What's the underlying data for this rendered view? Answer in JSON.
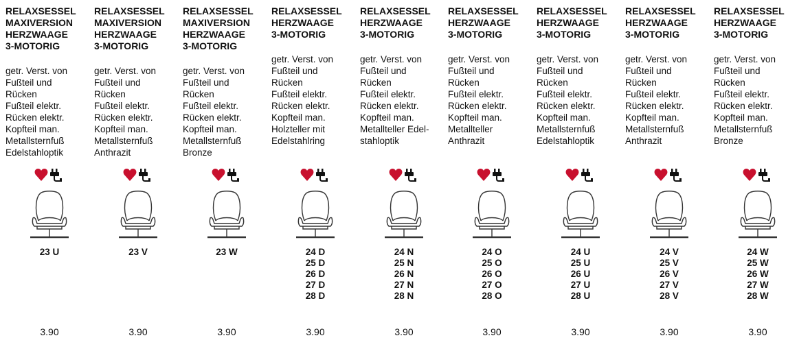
{
  "columns": [
    {
      "title": [
        "RELAXSESSEL",
        "MAXIVERSION",
        "HERZWAAGE",
        "3-MOTORIG"
      ],
      "description": [
        "getr. Verst. von",
        "Fußteil und",
        "Rücken",
        "Fußteil elektr.",
        "Rücken elektr.",
        "Kopfteil man.",
        "Metallsternfuß",
        "Edelstahloptik"
      ],
      "codes": [
        "23 U"
      ],
      "price": "3.90"
    },
    {
      "title": [
        "RELAXSESSEL",
        "MAXIVERSION",
        "HERZWAAGE",
        "3-MOTORIG"
      ],
      "description": [
        "getr. Verst. von",
        "Fußteil und",
        "Rücken",
        "Fußteil elektr.",
        "Rücken elektr.",
        "Kopfteil man.",
        "Metallsternfuß",
        "Anthrazit"
      ],
      "codes": [
        "23 V"
      ],
      "price": "3.90"
    },
    {
      "title": [
        "RELAXSESSEL",
        "MAXIVERSION",
        "HERZWAAGE",
        "3-MOTORIG"
      ],
      "description": [
        "getr. Verst. von",
        "Fußteil und",
        "Rücken",
        "Fußteil elektr.",
        "Rücken elektr.",
        "Kopfteil man.",
        "Metallsternfuß",
        "Bronze"
      ],
      "codes": [
        "23 W"
      ],
      "price": "3.90"
    },
    {
      "title": [
        "RELAXSESSEL",
        "HERZWAAGE",
        "3-MOTORIG"
      ],
      "description": [
        "getr. Verst. von",
        "Fußteil und",
        "Rücken",
        "Fußteil elektr.",
        "Rücken elektr.",
        "Kopfteil man.",
        "Holzteller mit",
        "Edelstahlring"
      ],
      "codes": [
        "24 D",
        "25 D",
        "26 D",
        "27 D",
        "28 D"
      ],
      "price": "3.90"
    },
    {
      "title": [
        "RELAXSESSEL",
        "HERZWAAGE",
        "3-MOTORIG"
      ],
      "description": [
        "getr. Verst. von",
        "Fußteil und",
        "Rücken",
        "Fußteil elektr.",
        "Rücken elektr.",
        "Kopfteil man.",
        "Metallteller Edel-",
        "stahloptik"
      ],
      "codes": [
        "24 N",
        "25 N",
        "26 N",
        "27 N",
        "28 N"
      ],
      "price": "3.90"
    },
    {
      "title": [
        "RELAXSESSEL",
        "HERZWAAGE",
        "3-MOTORIG"
      ],
      "description": [
        "getr. Verst. von",
        "Fußteil und",
        "Rücken",
        "Fußteil elektr.",
        "Rücken elektr.",
        "Kopfteil man.",
        "Metallteller",
        "Anthrazit"
      ],
      "codes": [
        "24 O",
        "25 O",
        "26 O",
        "27 O",
        "28 O"
      ],
      "price": "3.90"
    },
    {
      "title": [
        "RELAXSESSEL",
        "HERZWAAGE",
        "3-MOTORIG"
      ],
      "description": [
        "getr. Verst. von",
        "Fußteil und",
        "Rücken",
        "Fußteil elektr.",
        "Rücken elektr.",
        "Kopfteil man.",
        "Metallsternfuß",
        "Edelstahloptik"
      ],
      "codes": [
        "24 U",
        "25 U",
        "26 U",
        "27 U",
        "28 U"
      ],
      "price": "3.90"
    },
    {
      "title": [
        "RELAXSESSEL",
        "HERZWAAGE",
        "3-MOTORIG"
      ],
      "description": [
        "getr. Verst. von",
        "Fußteil und",
        "Rücken",
        "Fußteil elektr.",
        "Rücken elektr.",
        "Kopfteil man.",
        "Metallsternfuß",
        "Anthrazit"
      ],
      "codes": [
        "24 V",
        "25 V",
        "26 V",
        "27 V",
        "28 V"
      ],
      "price": "3.90"
    },
    {
      "title": [
        "RELAXSESSEL",
        "HERZWAAGE",
        "3-MOTORIG"
      ],
      "description": [
        "getr. Verst. von",
        "Fußteil und",
        "Rücken",
        "Fußteil elektr.",
        "Rücken elektr.",
        "Kopfteil man.",
        "Metallsternfuß",
        "Bronze"
      ],
      "codes": [
        "24 W",
        "25 W",
        "26 W",
        "27 W",
        "28 W"
      ],
      "price": "3.90"
    }
  ]
}
